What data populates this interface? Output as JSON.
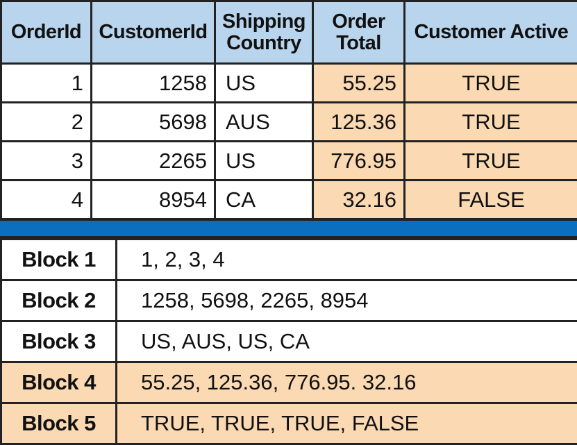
{
  "table": {
    "headers": [
      "OrderId",
      "CustomerId",
      "Shipping\nCountry",
      "Order\nTotal",
      "Customer Active"
    ],
    "rows": [
      [
        "1",
        "1258",
        "US",
        "55.25",
        "TRUE"
      ],
      [
        "2",
        "5698",
        "AUS",
        "125.36",
        "TRUE"
      ],
      [
        "3",
        "2265",
        "US",
        "776.95",
        "TRUE"
      ],
      [
        "4",
        "8954",
        "CA",
        "32.16",
        "FALSE"
      ]
    ]
  },
  "blocks": [
    {
      "label": "Block 1",
      "values": "1, 2, 3, 4"
    },
    {
      "label": "Block 2",
      "values": "1258, 5698, 2265, 8954"
    },
    {
      "label": "Block 3",
      "values": "US, AUS, US, CA"
    },
    {
      "label": "Block 4",
      "values": "55.25, 125.36, 776.95. 32.16"
    },
    {
      "label": "Block 5",
      "values": "TRUE, TRUE, TRUE, FALSE"
    }
  ],
  "colors": {
    "header_bg": "#b9d5ee",
    "highlight_bg": "#fbd9b3",
    "divider_bg": "#0a6fbf"
  }
}
